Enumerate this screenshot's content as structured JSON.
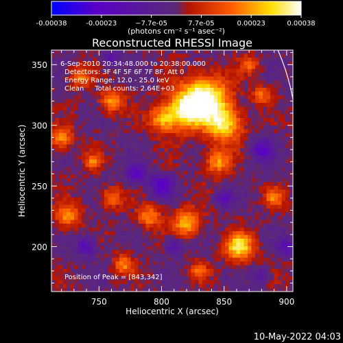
{
  "chart_data": {
    "type": "heatmap",
    "title": "Reconstructed RHESSI Image",
    "xlabel": "Heliocentric X (arcsec)",
    "ylabel": "Heliocentric Y (arcsec)",
    "xlim": [
      712,
      905
    ],
    "ylim": [
      163,
      362
    ],
    "x_ticks": [
      750,
      800,
      850,
      900
    ],
    "y_ticks": [
      200,
      250,
      300,
      350
    ],
    "colorbar": {
      "ticks": [
        "-0.00038",
        "-0.00023",
        "−7.7e-05",
        "7.7e-05",
        "0.00023",
        "0.00038"
      ],
      "range": [
        -0.00038,
        0.00038
      ],
      "unit_label": "(photons cm⁻² s⁻¹ asec⁻²)",
      "colors": [
        "#0000ff",
        "#5a00c8",
        "#5a2a78",
        "#b41400",
        "#ff5a00",
        "#ffe000",
        "#ffffff"
      ]
    },
    "annotations": [
      "6-Sep-2010 20:34:48.000 to 20:38:00.000",
      "Detectors: 3F 4F 5F 6F 7F 8F, Att 0",
      "Energy Range: 12.0 - 25.0 keV",
      "Clean     Total counts: 2.64E+03"
    ],
    "peak_label": "Position of Peak = [843,342]",
    "peak": {
      "x": 843,
      "y": 342
    },
    "limb_arc": [
      [
        893,
        362
      ],
      [
        906,
        315
      ]
    ],
    "blobs": [
      {
        "x": 836,
        "y": 322,
        "r": 18,
        "v": 1.0
      },
      {
        "x": 818,
        "y": 312,
        "r": 16,
        "v": 0.8
      },
      {
        "x": 850,
        "y": 300,
        "r": 14,
        "v": 0.75
      },
      {
        "x": 800,
        "y": 305,
        "r": 10,
        "v": 0.55
      },
      {
        "x": 760,
        "y": 320,
        "r": 9,
        "v": 0.6
      },
      {
        "x": 735,
        "y": 340,
        "r": 8,
        "v": 0.5
      },
      {
        "x": 720,
        "y": 290,
        "r": 9,
        "v": 0.55
      },
      {
        "x": 725,
        "y": 225,
        "r": 10,
        "v": 0.55
      },
      {
        "x": 760,
        "y": 240,
        "r": 8,
        "v": 0.5
      },
      {
        "x": 790,
        "y": 225,
        "r": 9,
        "v": 0.55
      },
      {
        "x": 820,
        "y": 220,
        "r": 11,
        "v": 0.65
      },
      {
        "x": 845,
        "y": 270,
        "r": 10,
        "v": 0.6
      },
      {
        "x": 862,
        "y": 200,
        "r": 11,
        "v": 0.85
      },
      {
        "x": 890,
        "y": 240,
        "r": 8,
        "v": 0.45
      },
      {
        "x": 880,
        "y": 325,
        "r": 7,
        "v": 0.45
      },
      {
        "x": 770,
        "y": 185,
        "r": 8,
        "v": 0.5
      },
      {
        "x": 830,
        "y": 180,
        "r": 7,
        "v": 0.45
      },
      {
        "x": 745,
        "y": 270,
        "r": 7,
        "v": 0.45
      },
      {
        "x": 870,
        "y": 350,
        "r": 7,
        "v": 0.4
      },
      {
        "x": 740,
        "y": 200,
        "r": 8,
        "v": -0.5
      },
      {
        "x": 780,
        "y": 260,
        "r": 8,
        "v": -0.55
      },
      {
        "x": 800,
        "y": 250,
        "r": 9,
        "v": -0.6
      },
      {
        "x": 810,
        "y": 200,
        "r": 7,
        "v": -0.45
      },
      {
        "x": 880,
        "y": 280,
        "r": 9,
        "v": -0.55
      },
      {
        "x": 760,
        "y": 355,
        "r": 7,
        "v": -0.4
      },
      {
        "x": 900,
        "y": 200,
        "r": 7,
        "v": -0.45
      },
      {
        "x": 850,
        "y": 240,
        "r": 7,
        "v": -0.45
      },
      {
        "x": 880,
        "y": 175,
        "r": 6,
        "v": -0.4
      }
    ]
  },
  "footer": {
    "timestamp": "10-May-2022 04:03"
  }
}
